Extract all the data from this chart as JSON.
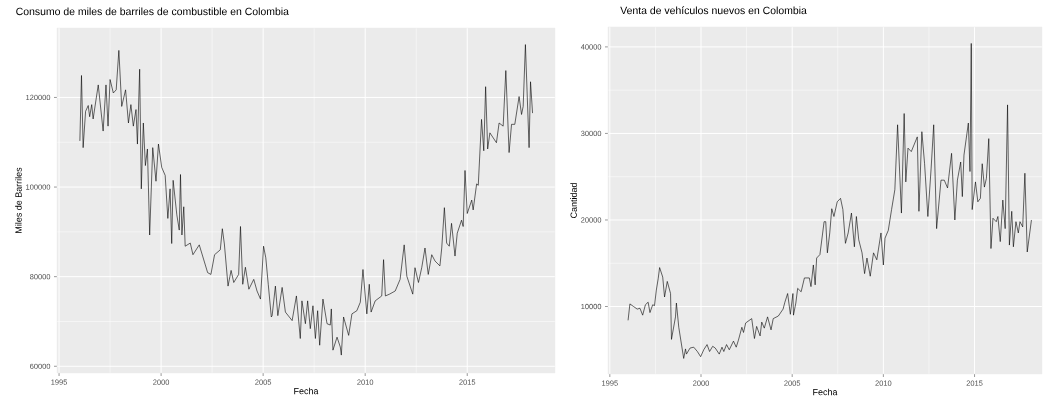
{
  "chart_data": [
    {
      "type": "line",
      "title": "Consumo de miles de barriles de combustible en Colombia",
      "xlabel": "Fecha",
      "ylabel": "Miles de Barriles",
      "xlim": [
        1994.9,
        2019.3
      ],
      "ylim": [
        58500,
        135500
      ],
      "xticks": [
        1995,
        2000,
        2005,
        2010,
        2015
      ],
      "yticks": [
        60000,
        80000,
        100000,
        120000
      ],
      "grid": true,
      "x": [
        1996.02,
        1996.1,
        1996.18,
        1996.3,
        1996.43,
        1996.5,
        1996.6,
        1996.67,
        1996.92,
        1997.16,
        1997.3,
        1997.4,
        1997.5,
        1997.66,
        1997.8,
        1997.93,
        1998.07,
        1998.26,
        1998.4,
        1998.52,
        1998.64,
        1998.77,
        1998.84,
        1998.95,
        1999.03,
        1999.13,
        1999.23,
        1999.33,
        1999.44,
        1999.59,
        1999.75,
        1999.87,
        2000.03,
        2000.2,
        2000.33,
        2000.44,
        2000.52,
        2000.59,
        2000.77,
        2000.89,
        2000.95,
        2001.02,
        2001.11,
        2001.18,
        2001.43,
        2001.56,
        2001.87,
        2002.28,
        2002.44,
        2002.62,
        2002.9,
        2003.0,
        2003.1,
        2003.28,
        2003.43,
        2003.56,
        2003.8,
        2003.89,
        2004.0,
        2004.13,
        2004.3,
        2004.54,
        2004.7,
        2004.87,
        2005.02,
        2005.13,
        2005.25,
        2005.4,
        2005.44,
        2005.6,
        2005.72,
        2005.93,
        2006.09,
        2006.42,
        2006.63,
        2006.82,
        2006.9,
        2007.07,
        2007.18,
        2007.31,
        2007.44,
        2007.56,
        2007.67,
        2007.77,
        2007.93,
        2008.13,
        2008.29,
        2008.34,
        2008.42,
        2008.62,
        2008.78,
        2008.83,
        2008.94,
        2009.19,
        2009.35,
        2009.59,
        2009.76,
        2009.89,
        2010.08,
        2010.2,
        2010.29,
        2010.49,
        2010.81,
        2010.9,
        2010.99,
        2011.19,
        2011.47,
        2011.71,
        2011.91,
        2012.04,
        2012.33,
        2012.44,
        2012.61,
        2012.77,
        2012.93,
        2013.09,
        2013.26,
        2013.42,
        2013.66,
        2013.75,
        2013.88,
        2013.99,
        2014.12,
        2014.23,
        2014.4,
        2014.51,
        2014.72,
        2014.8,
        2014.89,
        2015.0,
        2015.22,
        2015.29,
        2015.46,
        2015.54,
        2015.7,
        2015.81,
        2015.9,
        2016.0,
        2016.11,
        2016.43,
        2016.56,
        2016.76,
        2016.89,
        2017.05,
        2017.17,
        2017.33,
        2017.54,
        2017.66,
        2017.74,
        2017.85,
        2018.03,
        2018.1,
        2018.2
      ],
      "series": [
        {
          "color": "#000000",
          "values": [
            110300,
            124900,
            108800,
            116900,
            118200,
            115700,
            118400,
            115200,
            122800,
            112500,
            122800,
            113600,
            124000,
            121000,
            121700,
            130500,
            118000,
            121700,
            114300,
            118400,
            113600,
            117300,
            109600,
            126300,
            99600,
            114300,
            104800,
            108500,
            89300,
            108800,
            101300,
            109600,
            104400,
            102600,
            93000,
            99600,
            87400,
            101500,
            93800,
            90400,
            102800,
            89300,
            95600,
            86800,
            87500,
            84900,
            87100,
            80900,
            80500,
            84900,
            86000,
            90700,
            87300,
            77900,
            81400,
            78700,
            80500,
            91200,
            78300,
            82100,
            77200,
            79400,
            76800,
            75000,
            86800,
            84200,
            78300,
            71000,
            71300,
            77900,
            71300,
            77600,
            72100,
            70200,
            75700,
            66200,
            74600,
            69500,
            74600,
            68400,
            73500,
            66200,
            72400,
            64700,
            75000,
            69500,
            69200,
            72800,
            63600,
            66500,
            64300,
            62500,
            71000,
            66900,
            71700,
            72400,
            74300,
            81600,
            71700,
            78300,
            72100,
            74600,
            75700,
            83800,
            75700,
            76100,
            76800,
            79400,
            87100,
            80100,
            76100,
            82000,
            78700,
            82000,
            86400,
            80500,
            84900,
            83500,
            82400,
            86400,
            95400,
            87500,
            86800,
            91900,
            84600,
            89700,
            92600,
            91200,
            103700,
            94100,
            97100,
            94900,
            100700,
            100400,
            115100,
            108100,
            122400,
            108500,
            112100,
            109900,
            114300,
            113600,
            126000,
            107700,
            114000,
            114000,
            120200,
            116200,
            118000,
            131800,
            108800,
            123500,
            116500
          ]
        }
      ]
    },
    {
      "type": "line",
      "title": "Venta de vehículos nuevos en Colombia",
      "xlabel": "Fecha",
      "ylabel": "Cantidad",
      "xlim": [
        1994.9,
        2018.7
      ],
      "ylim": [
        2200,
        42300
      ],
      "xticks": [
        1995,
        2000,
        2005,
        2010,
        2015
      ],
      "yticks": [
        10000,
        20000,
        30000,
        40000
      ],
      "grid": true,
      "x": [
        1996.0,
        1996.1,
        1996.3,
        1996.5,
        1996.65,
        1996.8,
        1996.95,
        1997.1,
        1997.2,
        1997.35,
        1997.45,
        1997.55,
        1997.65,
        1997.73,
        1997.9,
        1998.0,
        1998.15,
        1998.33,
        1998.38,
        1998.6,
        1998.65,
        1998.78,
        1999.05,
        1999.15,
        1999.2,
        1999.4,
        1999.6,
        1999.8,
        1999.98,
        2000.15,
        2000.33,
        2000.47,
        2000.64,
        2000.78,
        2001.0,
        2001.15,
        2001.25,
        2001.4,
        2001.55,
        2001.78,
        2001.93,
        2002.05,
        2002.24,
        2002.33,
        2002.45,
        2002.78,
        2002.93,
        2003.05,
        2003.24,
        2003.33,
        2003.47,
        2003.65,
        2003.84,
        2003.96,
        2004.24,
        2004.5,
        2004.6,
        2004.75,
        2004.9,
        2005.04,
        2005.07,
        2005.2,
        2005.3,
        2005.49,
        2005.67,
        2005.94,
        2006.03,
        2006.16,
        2006.26,
        2006.34,
        2006.52,
        2006.75,
        2006.84,
        2006.93,
        2007.06,
        2007.17,
        2007.29,
        2007.47,
        2007.65,
        2007.78,
        2007.92,
        2008.07,
        2008.25,
        2008.41,
        2008.52,
        2008.65,
        2008.83,
        2008.97,
        2009.1,
        2009.28,
        2009.46,
        2009.64,
        2009.87,
        2010.0,
        2010.09,
        2010.27,
        2010.45,
        2010.63,
        2010.78,
        2010.99,
        2011.14,
        2011.23,
        2011.35,
        2011.53,
        2011.86,
        2011.95,
        2012.11,
        2012.26,
        2012.44,
        2012.62,
        2012.76,
        2012.92,
        2013.16,
        2013.34,
        2013.52,
        2013.74,
        2013.92,
        2014.06,
        2014.24,
        2014.33,
        2014.42,
        2014.66,
        2014.75,
        2014.82,
        2014.87,
        2015.05,
        2015.18,
        2015.32,
        2015.42,
        2015.54,
        2015.65,
        2015.78,
        2015.9,
        2016.01,
        2016.19,
        2016.28,
        2016.41,
        2016.55,
        2016.68,
        2016.81,
        2016.91,
        2017.04,
        2017.13,
        2017.27,
        2017.4,
        2017.49,
        2017.64,
        2017.76,
        2017.89,
        2018.12
      ],
      "series": [
        {
          "color": "#000000",
          "values": [
            8400,
            10300,
            10000,
            9700,
            9800,
            9000,
            10200,
            10500,
            9300,
            10200,
            10100,
            11900,
            13200,
            14500,
            13400,
            11100,
            12900,
            11500,
            6200,
            8800,
            10400,
            7600,
            4000,
            5100,
            4500,
            5200,
            5300,
            4800,
            4200,
            5000,
            5600,
            4800,
            5400,
            5200,
            4500,
            5300,
            4800,
            5600,
            5000,
            6000,
            5300,
            6100,
            7600,
            7000,
            8100,
            8600,
            6300,
            7700,
            6600,
            8200,
            7500,
            8800,
            7300,
            8600,
            8900,
            9700,
            10500,
            11500,
            9100,
            11500,
            9000,
            10400,
            12100,
            11700,
            13300,
            13300,
            12300,
            14800,
            12500,
            15600,
            16000,
            19800,
            19800,
            16200,
            18500,
            21300,
            20400,
            22100,
            22500,
            21200,
            17300,
            18500,
            20800,
            16900,
            20400,
            17700,
            16200,
            13800,
            15600,
            13500,
            16200,
            15400,
            18500,
            14800,
            17900,
            18800,
            21200,
            23500,
            31000,
            20800,
            32300,
            24400,
            28300,
            27900,
            29600,
            21000,
            30200,
            26500,
            20400,
            26000,
            31000,
            19000,
            24600,
            24600,
            23700,
            27700,
            20000,
            24600,
            26700,
            22700,
            27500,
            31200,
            25600,
            40400,
            21200,
            24400,
            22100,
            22500,
            26500,
            23800,
            24800,
            29400,
            16700,
            20200,
            19800,
            20400,
            17500,
            22300,
            19000,
            33300,
            17100,
            21000,
            16900,
            19800,
            18500,
            19800,
            19200,
            25400,
            16300,
            20000
          ]
        }
      ]
    }
  ]
}
